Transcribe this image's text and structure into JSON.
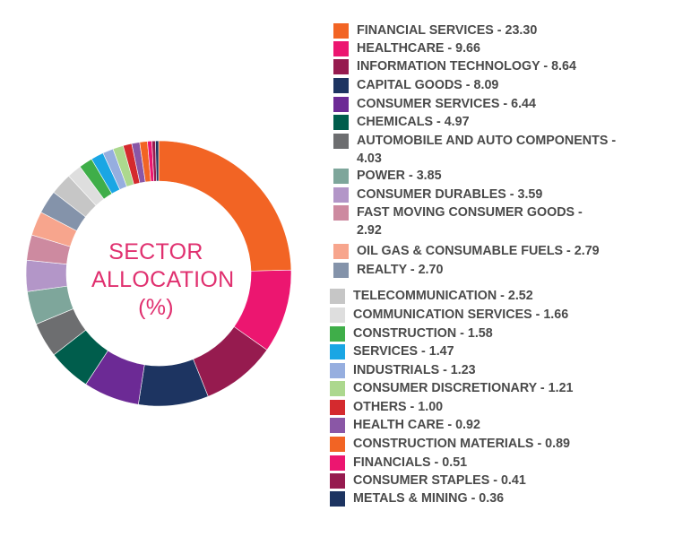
{
  "chart_data": {
    "type": "pie",
    "variant": "donut",
    "center_label": [
      "SECTOR",
      "ALLOCATION",
      "(%)"
    ],
    "legend_placement": "right",
    "slices": [
      {
        "label": "FINANCIAL SERVICES",
        "value": 23.3,
        "legend_text": "FINANCIAL SERVICES - 23.30",
        "color": "#f26424"
      },
      {
        "label": "HEALTHCARE",
        "value": 9.66,
        "legend_text": "HEALTHCARE - 9.66",
        "color": "#ec1670"
      },
      {
        "label": "INFORMATION TECHNOLOGY",
        "value": 8.64,
        "legend_text": "INFORMATION TECHNOLOGY - 8.64",
        "color": "#961b4f"
      },
      {
        "label": "CAPITAL GOODS",
        "value": 8.09,
        "legend_text": "CAPITAL GOODS - 8.09",
        "color": "#1d3461"
      },
      {
        "label": "CONSUMER SERVICES",
        "value": 6.44,
        "legend_text": "CONSUMER SERVICES - 6.44",
        "color": "#6c2a95"
      },
      {
        "label": "CHEMICALS",
        "value": 4.97,
        "legend_text": "CHEMICALS - 4.97",
        "color": "#005d4c"
      },
      {
        "label": "AUTOMOBILE AND AUTO COMPONENTS",
        "value": 4.03,
        "legend_lines": [
          "AUTOMOBILE AND AUTO COMPONENTS  -",
          "4.03"
        ],
        "color": "#6d6e70"
      },
      {
        "label": "POWER",
        "value": 3.85,
        "legend_text": "POWER - 3.85",
        "color": "#7ea69b"
      },
      {
        "label": "CONSUMER DURABLES",
        "value": 3.59,
        "legend_text": "CONSUMER DURABLES - 3.59",
        "color": "#b396c8"
      },
      {
        "label": "FAST MOVING CONSUMER GOODS",
        "value": 2.92,
        "legend_lines": [
          "FAST MOVING CONSUMER GOODS  -",
          "2.92"
        ],
        "color": "#cd8aa0"
      },
      {
        "label": "OIL GAS & CONSUMABLE FUELS",
        "value": 2.79,
        "legend_text": "OIL GAS & CONSUMABLE FUELS - 2.79",
        "color": "#f7a58d"
      },
      {
        "label": "REALTY",
        "value": 2.7,
        "legend_text": "REALTY - 2.70",
        "color": "#8493aa"
      },
      {
        "label": "TELECOMMUNICATION",
        "value": 2.52,
        "legend_text": "TELECOMMUNICATION - 2.52",
        "color": "#c6c6c6"
      },
      {
        "label": "COMMUNICATION SERVICES",
        "value": 1.66,
        "legend_text": "COMMUNICATION SERVICES - 1.66",
        "color": "#dedede"
      },
      {
        "label": "CONSTRUCTION",
        "value": 1.58,
        "legend_text": "CONSTRUCTION - 1.58",
        "color": "#3fae49"
      },
      {
        "label": "SERVICES",
        "value": 1.47,
        "legend_text": "SERVICES - 1.47",
        "color": "#1aa6e4"
      },
      {
        "label": "INDUSTRIALS",
        "value": 1.23,
        "legend_text": "INDUSTRIALS - 1.23",
        "color": "#96aedf"
      },
      {
        "label": "CONSUMER DISCRETIONARY",
        "value": 1.21,
        "legend_text": "CONSUMER DISCRETIONARY - 1.21",
        "color": "#acd88e"
      },
      {
        "label": "OTHERS",
        "value": 1.0,
        "legend_text": "OTHERS - 1.00",
        "color": "#d42a2e"
      },
      {
        "label": "HEALTH CARE",
        "value": 0.92,
        "legend_text": "HEALTH CARE - 0.92",
        "color": "#8a57a6"
      },
      {
        "label": "CONSTRUCTION MATERIALS",
        "value": 0.89,
        "legend_text": "CONSTRUCTION MATERIALS - 0.89",
        "color": "#f26424"
      },
      {
        "label": "FINANCIALS",
        "value": 0.51,
        "legend_text": "FINANCIALS - 0.51",
        "color": "#ec1670"
      },
      {
        "label": "CONSUMER STAPLES",
        "value": 0.41,
        "legend_text": "CONSUMER STAPLES - 0.41",
        "color": "#961b4f"
      },
      {
        "label": "METALS & MINING",
        "value": 0.36,
        "legend_text": "METALS & MINING - 0.36",
        "color": "#1d3461"
      }
    ]
  }
}
